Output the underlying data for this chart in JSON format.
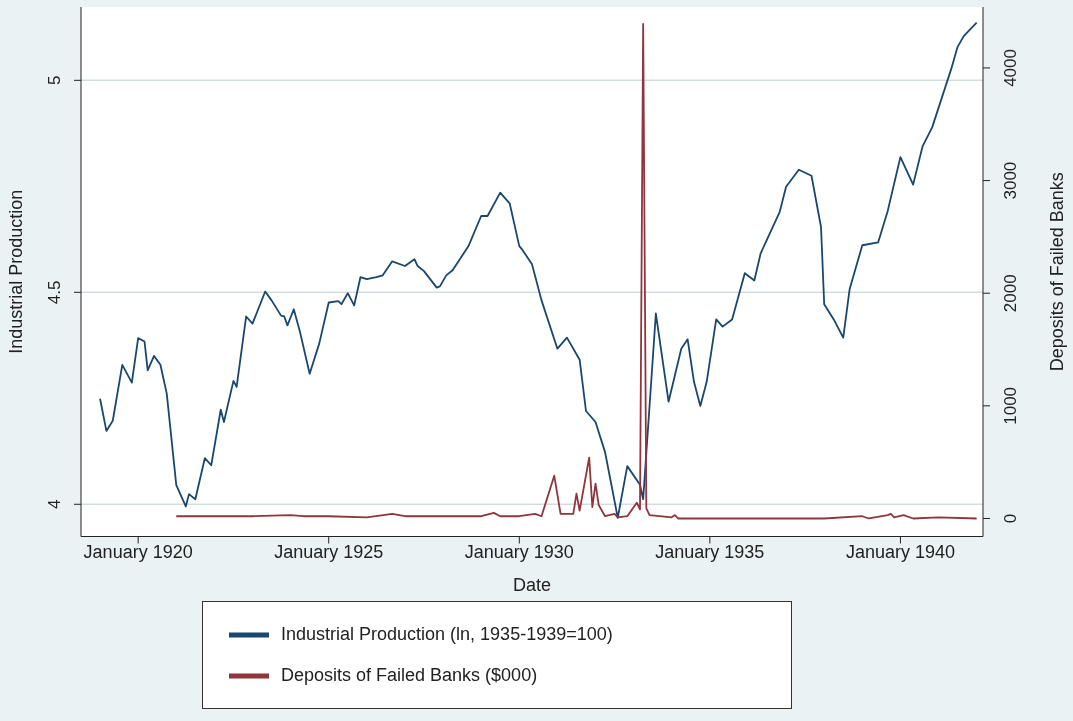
{
  "chart_data": {
    "type": "line",
    "xlabel": "Date",
    "ylabel": "Industrial Production",
    "y2label": "Deposits of Failed Banks",
    "xlim": [
      "1918-07",
      "1942-03"
    ],
    "xticks": [
      {
        "value": "1920-01",
        "label": "January 1920"
      },
      {
        "value": "1925-01",
        "label": "January 1925"
      },
      {
        "value": "1930-01",
        "label": "January 1930"
      },
      {
        "value": "1935-01",
        "label": "January 1935"
      },
      {
        "value": "1940-01",
        "label": "January 1940"
      }
    ],
    "ylim": [
      3.924,
      5.173
    ],
    "yticks": [
      4,
      4.5,
      5
    ],
    "y2lim": [
      -160,
      4541
    ],
    "y2ticks": [
      0,
      1000,
      2000,
      3000,
      4000
    ],
    "grid": "y",
    "legend": "bottom",
    "series": [
      {
        "name": "Industrial Production (ln, 1935-1939=100)",
        "color": "#1a476f",
        "x": [
          "1919-01",
          "1919-03",
          "1919-05",
          "1919-08",
          "1919-11",
          "1920-01",
          "1920-03",
          "1920-04",
          "1920-06",
          "1920-08",
          "1920-10",
          "1921-01",
          "1921-04",
          "1921-05",
          "1921-07",
          "1921-10",
          "1921-12",
          "1922-03",
          "1922-04",
          "1922-07",
          "1922-08",
          "1922-11",
          "1923-01",
          "1923-05",
          "1923-07",
          "1923-10",
          "1923-11",
          "1923-12",
          "1924-02",
          "1924-04",
          "1924-07",
          "1924-10",
          "1925-01",
          "1925-04",
          "1925-05",
          "1925-07",
          "1925-09",
          "1925-11",
          "1926-01",
          "1926-04",
          "1926-06",
          "1926-09",
          "1927-01",
          "1927-04",
          "1927-05",
          "1927-07",
          "1927-11",
          "1927-12",
          "1928-02",
          "1928-04",
          "1928-09",
          "1929-01",
          "1929-03",
          "1929-07",
          "1929-10",
          "1930-01",
          "1930-02",
          "1930-05",
          "1930-08",
          "1931-01",
          "1931-04",
          "1931-08",
          "1931-10",
          "1932-01",
          "1932-04",
          "1932-06",
          "1932-08",
          "1932-11",
          "1933-03",
          "1933-04",
          "1933-08",
          "1933-12",
          "1934-04",
          "1934-06",
          "1934-08",
          "1934-10",
          "1934-12",
          "1935-03",
          "1935-05",
          "1935-08",
          "1935-12",
          "1936-03",
          "1936-05",
          "1936-11",
          "1937-01",
          "1937-05",
          "1937-09",
          "1937-12",
          "1938-01",
          "1938-04",
          "1938-07",
          "1938-09",
          "1939-01",
          "1939-06",
          "1939-09",
          "1940-01",
          "1940-05",
          "1940-08",
          "1940-11",
          "1941-05",
          "1941-07",
          "1941-09",
          "1942-01"
        ],
        "values": [
          4.249,
          4.173,
          4.197,
          4.329,
          4.287,
          4.392,
          4.384,
          4.316,
          4.35,
          4.329,
          4.261,
          4.045,
          3.995,
          4.024,
          4.012,
          4.109,
          4.092,
          4.223,
          4.194,
          4.291,
          4.277,
          4.443,
          4.426,
          4.502,
          4.481,
          4.445,
          4.443,
          4.422,
          4.46,
          4.405,
          4.308,
          4.379,
          4.476,
          4.479,
          4.472,
          4.498,
          4.469,
          4.536,
          4.531,
          4.536,
          4.54,
          4.573,
          4.562,
          4.578,
          4.562,
          4.55,
          4.511,
          4.514,
          4.54,
          4.552,
          4.609,
          4.68,
          4.68,
          4.735,
          4.709,
          4.609,
          4.6,
          4.566,
          4.481,
          4.367,
          4.393,
          4.341,
          4.22,
          4.194,
          4.123,
          4.046,
          3.968,
          4.09,
          4.046,
          4.012,
          4.45,
          4.242,
          4.367,
          4.389,
          4.289,
          4.232,
          4.289,
          4.436,
          4.419,
          4.436,
          4.545,
          4.528,
          4.592,
          4.69,
          4.749,
          4.789,
          4.775,
          4.654,
          4.472,
          4.436,
          4.393,
          4.507,
          4.611,
          4.618,
          4.692,
          4.819,
          4.754,
          4.845,
          4.889,
          5.027,
          5.079,
          5.105,
          5.136
        ]
      },
      {
        "name": "Deposits of Failed Banks ($000)",
        "color": "#90353b",
        "axis": "y2",
        "x": [
          "1921-01",
          "1922-01",
          "1923-01",
          "1924-01",
          "1924-05",
          "1925-01",
          "1926-01",
          "1926-09",
          "1927-01",
          "1928-01",
          "1929-01",
          "1929-05",
          "1929-07",
          "1930-01",
          "1930-06",
          "1930-08",
          "1930-12",
          "1931-02",
          "1931-06",
          "1931-07",
          "1931-08",
          "1931-11",
          "1931-12",
          "1932-01",
          "1932-02",
          "1932-04",
          "1932-07",
          "1932-08",
          "1932-11",
          "1933-02",
          "1933-03",
          "1933-04",
          "1933-05",
          "1933-06",
          "1934-01",
          "1934-02",
          "1934-03",
          "1935-01",
          "1936-01",
          "1937-01",
          "1938-01",
          "1939-01",
          "1939-03",
          "1939-09",
          "1939-10",
          "1939-11",
          "1940-02",
          "1940-05",
          "1941-01",
          "1942-01"
        ],
        "values": [
          20,
          20,
          20,
          30,
          20,
          20,
          10,
          40,
          20,
          20,
          20,
          50,
          20,
          20,
          40,
          20,
          380,
          40,
          40,
          220,
          70,
          540,
          100,
          310,
          120,
          20,
          40,
          10,
          20,
          140,
          80,
          4390,
          90,
          30,
          10,
          30,
          0,
          0,
          0,
          0,
          0,
          20,
          0,
          30,
          40,
          10,
          30,
          0,
          10,
          0
        ]
      }
    ]
  }
}
